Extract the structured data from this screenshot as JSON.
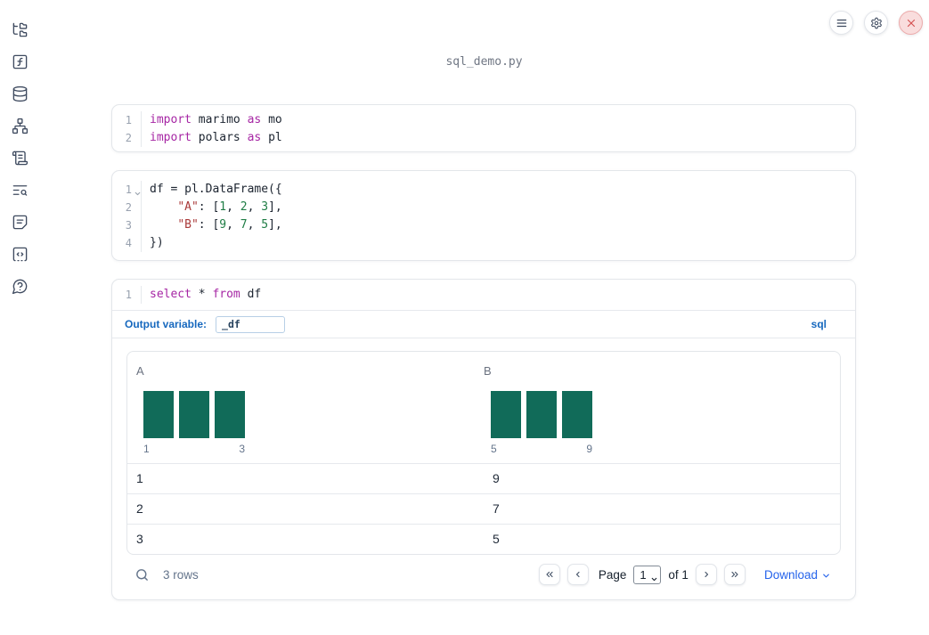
{
  "title": "sql_demo.py",
  "colors": {
    "accent_blue": "#2563eb",
    "label_blue": "#1668be",
    "bar_teal": "#116b59",
    "keyword": "#a626a4",
    "string": "#aa3a3a",
    "number": "#1f7d45",
    "close_red": "#d45252"
  },
  "sidebar": {
    "items": [
      {
        "name": "file-explorer",
        "icon": "folder-tree-icon"
      },
      {
        "name": "variables",
        "icon": "square-function-icon"
      },
      {
        "name": "datasources",
        "icon": "database-icon"
      },
      {
        "name": "dependencies",
        "icon": "network-graph-icon"
      },
      {
        "name": "logs",
        "icon": "scroll-text-icon"
      },
      {
        "name": "documentation",
        "icon": "text-search-icon"
      },
      {
        "name": "scratchpad",
        "icon": "note-icon"
      },
      {
        "name": "snippets",
        "icon": "square-code-icon"
      },
      {
        "name": "help",
        "icon": "help-bubble-icon"
      }
    ]
  },
  "window_controls": [
    {
      "name": "menu-button",
      "icon": "hamburger-icon"
    },
    {
      "name": "settings-button",
      "icon": "gear-icon"
    },
    {
      "name": "close-button",
      "icon": "close-x-icon"
    }
  ],
  "editor_cells": [
    {
      "name": "imports-cell",
      "lines": [
        {
          "num": "1",
          "tokens": [
            [
              "kw",
              "import"
            ],
            [
              "pl",
              " marimo "
            ],
            [
              "kw",
              "as"
            ],
            [
              "pl",
              " mo"
            ]
          ]
        },
        {
          "num": "2",
          "tokens": [
            [
              "kw",
              "import"
            ],
            [
              "pl",
              " polars "
            ],
            [
              "kw",
              "as"
            ],
            [
              "pl",
              " pl"
            ]
          ]
        }
      ]
    },
    {
      "name": "dataframe-cell",
      "lines": [
        {
          "num": "1",
          "fold": true,
          "tokens": [
            [
              "pl",
              "df = pl.DataFrame({"
            ]
          ]
        },
        {
          "num": "2",
          "tokens": [
            [
              "pl",
              "    "
            ],
            [
              "str",
              "\"A\""
            ],
            [
              "pl",
              ": ["
            ],
            [
              "num",
              "1"
            ],
            [
              "pl",
              ", "
            ],
            [
              "num",
              "2"
            ],
            [
              "pl",
              ", "
            ],
            [
              "num",
              "3"
            ],
            [
              "pl",
              "],"
            ]
          ]
        },
        {
          "num": "3",
          "tokens": [
            [
              "pl",
              "    "
            ],
            [
              "str",
              "\"B\""
            ],
            [
              "pl",
              ": ["
            ],
            [
              "num",
              "9"
            ],
            [
              "pl",
              ", "
            ],
            [
              "num",
              "7"
            ],
            [
              "pl",
              ", "
            ],
            [
              "num",
              "5"
            ],
            [
              "pl",
              "],"
            ]
          ]
        },
        {
          "num": "4",
          "tokens": [
            [
              "pl",
              "})"
            ]
          ]
        }
      ]
    }
  ],
  "sql_cell": {
    "lines": [
      {
        "num": "1",
        "tokens": [
          [
            "kw",
            "select"
          ],
          [
            "pl",
            " * "
          ],
          [
            "kw",
            "from"
          ],
          [
            "pl",
            " df"
          ]
        ]
      }
    ],
    "footer": {
      "label": "Output variable:",
      "value": "_df",
      "dialect": "sql"
    }
  },
  "table": {
    "columns": [
      {
        "header": "A",
        "hist": {
          "bars": [
            1,
            1,
            1
          ],
          "min_label": "1",
          "max_label": "3"
        }
      },
      {
        "header": "B",
        "hist": {
          "bars": [
            1,
            1,
            1
          ],
          "min_label": "5",
          "max_label": "9"
        }
      }
    ],
    "rows": [
      [
        "1",
        "9"
      ],
      [
        "2",
        "7"
      ],
      [
        "3",
        "5"
      ]
    ],
    "footer": {
      "row_count": "3 rows",
      "page_label": "Page",
      "page_value": "1",
      "of_label": "of 1",
      "download_label": "Download"
    }
  }
}
